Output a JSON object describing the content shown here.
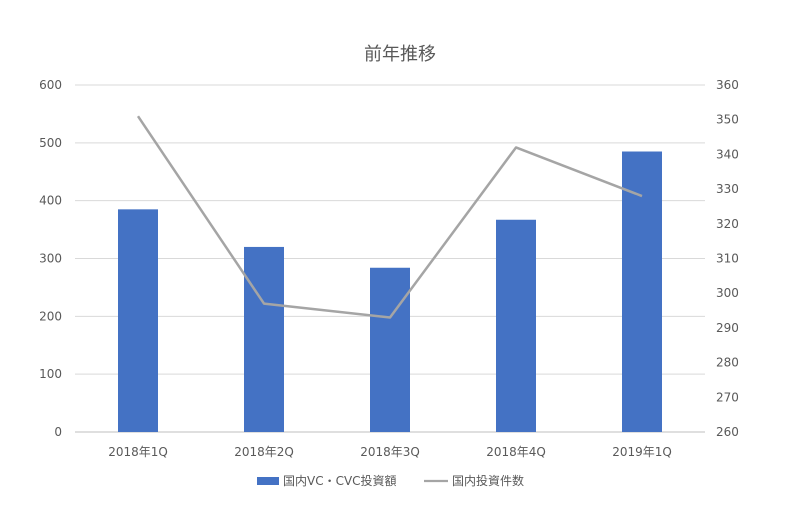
{
  "chart_data": {
    "type": "bar",
    "title": "前年推移",
    "categories": [
      "2018年1Q",
      "2018年2Q",
      "2018年3Q",
      "2018年4Q",
      "2019年1Q"
    ],
    "series": [
      {
        "name": "国内VC・CVC投資額",
        "kind": "bar",
        "axis": "left",
        "values": [
          385,
          320,
          284,
          367,
          485
        ],
        "color": "#4472C4"
      },
      {
        "name": "国内投資件数",
        "kind": "line",
        "axis": "right",
        "values": [
          351,
          297,
          293,
          342,
          328
        ],
        "color": "#A5A5A5"
      }
    ],
    "y_left": {
      "min": 0,
      "max": 600,
      "step": 100,
      "ticks": [
        "0",
        "100",
        "200",
        "300",
        "400",
        "500",
        "600"
      ]
    },
    "y_right": {
      "min": 260,
      "max": 360,
      "step": 10,
      "ticks": [
        "260",
        "270",
        "280",
        "290",
        "300",
        "310",
        "320",
        "330",
        "340",
        "350",
        "360"
      ]
    },
    "grid": true,
    "legend_position": "bottom"
  }
}
